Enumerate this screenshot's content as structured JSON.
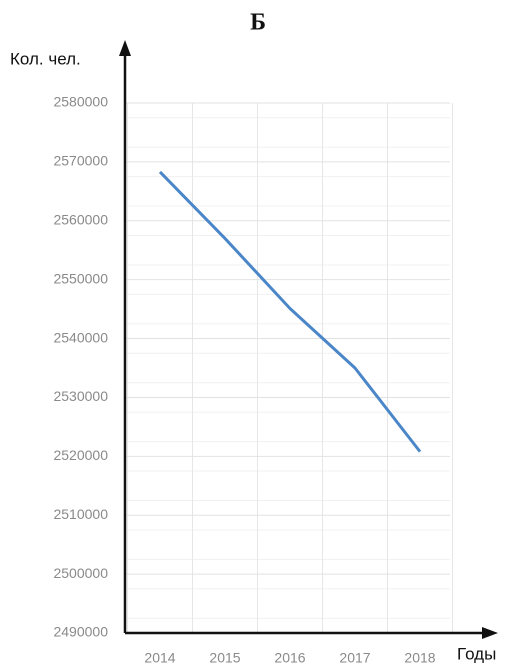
{
  "chart_data": {
    "type": "line",
    "title": "Б",
    "y_label": "Кол. чел.",
    "x_label": "Годы",
    "categories": [
      "2014",
      "2015",
      "2016",
      "2017",
      "2018"
    ],
    "series": [
      {
        "name": "Кол. чел.",
        "color": "#4a86c8",
        "values": [
          2568300,
          2557000,
          2545100,
          2535000,
          2520800
        ]
      }
    ],
    "ylim": [
      2490000,
      2580000
    ],
    "yticks": [
      2490000,
      2500000,
      2510000,
      2520000,
      2530000,
      2540000,
      2550000,
      2560000,
      2570000,
      2580000
    ],
    "grid": true
  }
}
